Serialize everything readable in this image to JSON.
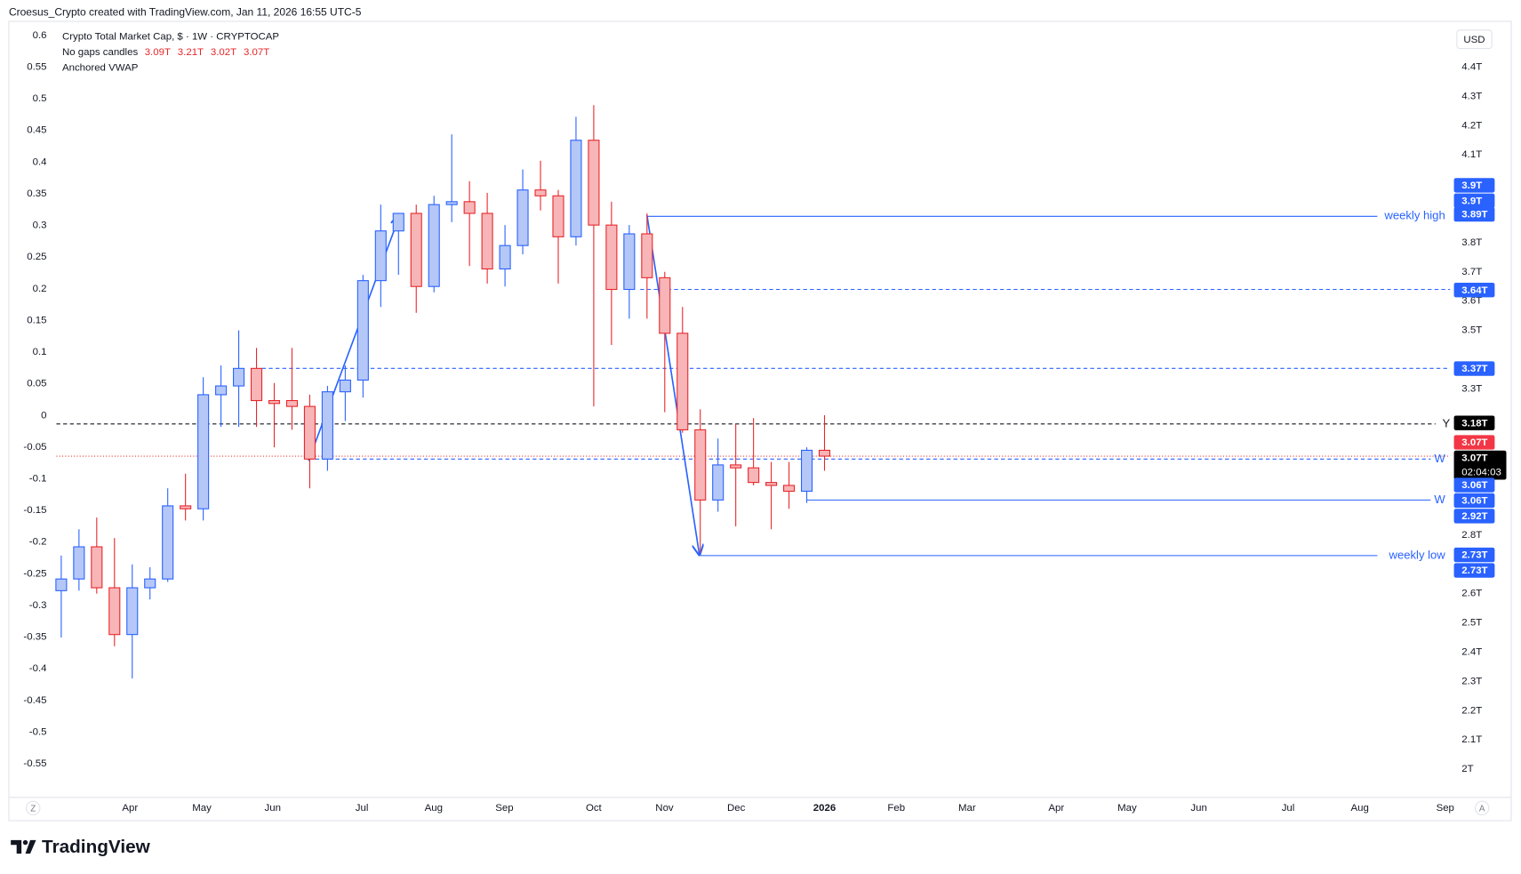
{
  "header": "Croesus_Crypto created with TradingView.com, Jan 11, 2026 16:55 UTC-5",
  "brand": "TradingView",
  "currency": "USD",
  "corner_left": "Z",
  "corner_right": "A",
  "chart_data": {
    "type": "candlestick",
    "title": "Crypto Total Market Cap, $ · 1W · CRYPTOCAP",
    "subtitle": "No gaps candles",
    "indicator": "Anchored VWAP",
    "legend_ohlc": [
      "3.09T",
      "3.21T",
      "3.02T",
      "3.07T"
    ],
    "up_color": "#2962ff",
    "up_fill": "#b4c7f7",
    "down_color": "#e8262a",
    "down_fill": "#f7b5b7",
    "open": [
      2.61,
      2.65,
      2.76,
      2.62,
      2.46,
      2.62,
      2.65,
      2.9,
      2.89,
      3.28,
      3.31,
      3.37,
      3.26,
      3.26,
      3.24,
      3.06,
      3.29,
      3.33,
      3.67,
      3.84,
      3.9,
      3.65,
      3.93,
      3.94,
      3.9,
      3.71,
      3.79,
      3.98,
      3.96,
      3.82,
      4.15,
      3.86,
      3.64,
      3.83,
      3.68,
      3.49,
      3.16,
      2.92,
      3.04,
      3.03,
      2.98,
      2.97,
      2.95,
      3.09
    ],
    "high": [
      2.73,
      2.82,
      2.86,
      2.79,
      2.7,
      2.69,
      2.96,
      3.01,
      3.34,
      3.38,
      3.5,
      3.44,
      3.32,
      3.44,
      3.28,
      3.31,
      3.38,
      3.69,
      3.93,
      3.9,
      3.93,
      3.96,
      4.17,
      4.01,
      3.97,
      3.86,
      4.05,
      4.08,
      3.98,
      4.23,
      4.27,
      3.94,
      3.86,
      3.9,
      3.7,
      3.58,
      3.23,
      3.13,
      3.18,
      3.2,
      3.05,
      3.05,
      3.1,
      3.21
    ],
    "low": [
      2.45,
      2.61,
      2.6,
      2.42,
      2.31,
      2.58,
      2.64,
      2.85,
      2.85,
      3.17,
      3.17,
      3.17,
      3.1,
      3.16,
      2.96,
      3.02,
      3.19,
      3.27,
      3.58,
      3.69,
      3.56,
      3.63,
      3.87,
      3.72,
      3.66,
      3.65,
      3.76,
      3.91,
      3.66,
      3.79,
      3.24,
      3.45,
      3.54,
      3.54,
      3.22,
      3.15,
      2.74,
      2.88,
      2.83,
      2.97,
      2.82,
      2.89,
      2.91,
      3.02
    ],
    "close": [
      2.65,
      2.76,
      2.62,
      2.46,
      2.62,
      2.65,
      2.9,
      2.89,
      3.28,
      3.31,
      3.37,
      3.26,
      3.25,
      3.24,
      3.06,
      3.29,
      3.33,
      3.67,
      3.84,
      3.9,
      3.65,
      3.93,
      3.94,
      3.9,
      3.71,
      3.79,
      3.98,
      3.96,
      3.82,
      4.15,
      3.86,
      3.64,
      3.83,
      3.68,
      3.49,
      3.16,
      2.92,
      3.04,
      3.03,
      2.98,
      2.97,
      2.95,
      3.09,
      3.07
    ],
    "xtick_labels": [
      "Apr",
      "May",
      "Jun",
      "Jul",
      "Aug",
      "Sep",
      "Oct",
      "Nov",
      "Dec",
      "2026",
      "Feb",
      "Mar",
      "Apr",
      "May",
      "Jun",
      "Jul",
      "Aug",
      "Sep"
    ],
    "ylim": [
      1.91,
      4.53
    ],
    "yticks": [
      {
        "value": 4.4,
        "label": "4.4T"
      },
      {
        "value": 4.3,
        "label": "4.3T"
      },
      {
        "value": 4.2,
        "label": "4.2T"
      },
      {
        "value": 4.1,
        "label": "4.1T"
      },
      {
        "value": 3.8,
        "label": "3.8T"
      },
      {
        "value": 3.7,
        "label": "3.7T"
      },
      {
        "value": 3.6,
        "label": "3.6T"
      },
      {
        "value": 3.5,
        "label": "3.5T"
      },
      {
        "value": 3.3,
        "label": "3.3T"
      },
      {
        "value": 2.8,
        "label": "2.8T"
      },
      {
        "value": 2.6,
        "label": "2.6T"
      },
      {
        "value": 2.5,
        "label": "2.5T"
      },
      {
        "value": 2.4,
        "label": "2.4T"
      },
      {
        "value": 2.3,
        "label": "2.3T"
      },
      {
        "value": 2.2,
        "label": "2.2T"
      },
      {
        "value": 2.1,
        "label": "2.1T"
      },
      {
        "value": 2,
        "label": "2T"
      }
    ],
    "y2lim": [
      -0.6,
      0.61
    ],
    "y2ticks": [
      0.6,
      0.55,
      0.5,
      0.45,
      0.4,
      0.35,
      0.3,
      0.25,
      0.2,
      0.15,
      0.1,
      0.05,
      0,
      -0.05,
      -0.1,
      -0.15,
      -0.2,
      -0.25,
      -0.3,
      -0.35,
      -0.4,
      -0.45,
      -0.5,
      -0.55
    ],
    "levels": [
      {
        "name": "weekly high",
        "value": 3.89,
        "style": "solid",
        "color": "#2962ff"
      },
      {
        "value": 3.64,
        "style": "dashed",
        "color": "#2962ff"
      },
      {
        "value": 3.37,
        "style": "dashed",
        "color": "#2962ff"
      },
      {
        "name": "Y",
        "value": 3.18,
        "style": "dashed",
        "color": "#131722"
      },
      {
        "value": 3.07,
        "style": "dotted",
        "color": "#e53935"
      },
      {
        "name": "W",
        "value": 3.06,
        "style": "dashed",
        "color": "#2962ff"
      },
      {
        "name": "W",
        "value": 2.92,
        "style": "solid",
        "color": "#2962ff"
      },
      {
        "name": "weekly low",
        "value": 2.73,
        "style": "solid",
        "color": "#2962ff"
      }
    ],
    "price_labels": [
      {
        "value": 3.9,
        "label": "3.9T",
        "color": "#2962ff"
      },
      {
        "value": 3.9,
        "label": "3.9T",
        "color": "#2962ff"
      },
      {
        "value": 3.89,
        "label": "3.89T",
        "color": "#2962ff"
      },
      {
        "value": 3.64,
        "label": "3.64T",
        "color": "#2962ff"
      },
      {
        "value": 3.37,
        "label": "3.37T",
        "color": "#2962ff"
      },
      {
        "value": 3.18,
        "label": "3.18T",
        "color": "#000000"
      },
      {
        "value": 3.07,
        "label": "3.07T",
        "color": "#f23645"
      },
      {
        "value": 3.07,
        "label": "3.07T",
        "color": "#000000"
      },
      {
        "value": 3.06,
        "label": "3.06T",
        "color": "#2962ff"
      },
      {
        "value": 3.06,
        "label": "3.06T",
        "color": "#2962ff"
      },
      {
        "value": 2.92,
        "label": "2.92T",
        "color": "#2962ff"
      },
      {
        "value": 2.73,
        "label": "2.73T",
        "color": "#2962ff"
      },
      {
        "value": 2.73,
        "label": "2.73T",
        "color": "#2962ff"
      }
    ],
    "countdown": "02:04:03"
  }
}
